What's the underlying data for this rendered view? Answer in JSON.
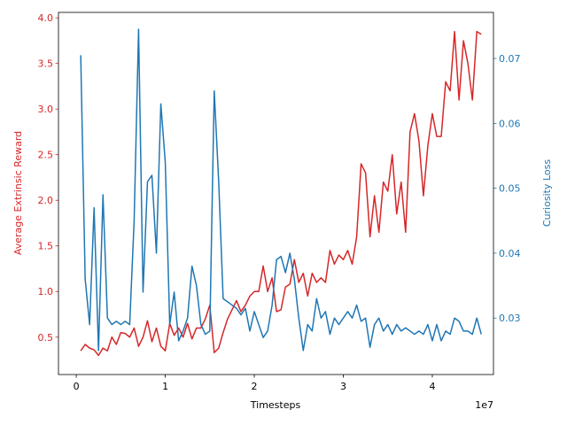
{
  "chart_data": {
    "type": "line",
    "xlabel": "Timesteps",
    "x_offset_label": "1e7",
    "ylabel": "Average Extrinsic Reward",
    "y2label": "Curiosity Loss",
    "ylabel_color": "#d62728",
    "y2label_color": "#1f77b4",
    "xlim": [
      -2000000,
      46870000
    ],
    "xticks": [
      0,
      {
        "value": 10000000,
        "label": "1"
      },
      {
        "value": 20000000,
        "label": "2"
      },
      {
        "value": 30000000,
        "label": "3"
      },
      {
        "value": 40000000,
        "label": "4"
      }
    ],
    "ylim": [
      0.09,
      4.06
    ],
    "yticks": [
      0.5,
      {
        "value": 1,
        "label": "1.0"
      },
      1.5,
      {
        "value": 2,
        "label": "2.0"
      },
      2.5,
      {
        "value": 3,
        "label": "3.0"
      },
      3.5,
      {
        "value": 4,
        "label": "4.0"
      }
    ],
    "y2lim": [
      0.0213,
      0.0771
    ],
    "y2ticks": [
      0.03,
      0.04,
      0.05,
      0.06,
      0.07
    ],
    "grid": false,
    "x": [
      500000,
      1000000,
      1500000,
      2000000,
      2500000,
      3000000,
      3500000,
      4000000,
      4500000,
      5000000,
      5500000,
      6000000,
      6500000,
      7000000,
      7500000,
      8000000,
      8500000,
      9000000,
      9500000,
      10000000,
      10500000,
      11000000,
      11500000,
      12000000,
      12500000,
      13000000,
      13500000,
      14000000,
      14500000,
      15000000,
      15500000,
      16000000,
      16500000,
      17000000,
      17500000,
      18000000,
      18500000,
      19000000,
      19500000,
      20000000,
      20500000,
      21000000,
      21500000,
      22000000,
      22500000,
      23000000,
      23500000,
      24000000,
      24500000,
      25000000,
      25500000,
      26000000,
      26500000,
      27000000,
      27500000,
      28000000,
      28500000,
      29000000,
      29500000,
      30000000,
      30500000,
      31000000,
      31500000,
      32000000,
      32500000,
      33000000,
      33500000,
      34000000,
      34500000,
      35000000,
      35500000,
      36000000,
      36500000,
      37000000,
      37500000,
      38000000,
      38500000,
      39000000,
      39500000,
      40000000,
      40500000,
      41000000,
      41500000,
      42000000,
      42500000,
      43000000,
      43500000,
      44000000,
      44500000,
      45000000,
      45500000
    ],
    "series": [
      {
        "color": "#d62728",
        "values": [
          0.35,
          0.42,
          0.38,
          0.36,
          0.3,
          0.38,
          0.35,
          0.5,
          0.42,
          0.55,
          0.54,
          0.5,
          0.6,
          0.4,
          0.5,
          0.68,
          0.45,
          0.6,
          0.4,
          0.35,
          0.65,
          0.52,
          0.6,
          0.5,
          0.65,
          0.48,
          0.6,
          0.6,
          0.7,
          0.85,
          0.33,
          0.38,
          0.55,
          0.7,
          0.8,
          0.9,
          0.78,
          0.85,
          0.95,
          1.0,
          1.0,
          1.28,
          1.0,
          1.15,
          0.78,
          0.8,
          1.05,
          1.08,
          1.35,
          1.1,
          1.2,
          0.95,
          1.2,
          1.1,
          1.15,
          1.1,
          1.45,
          1.3,
          1.4,
          1.35,
          1.45,
          1.3,
          1.6,
          2.4,
          2.3,
          1.6,
          2.05,
          1.65,
          2.2,
          2.1,
          2.5,
          1.85,
          2.2,
          1.65,
          2.75,
          2.95,
          2.65,
          2.05,
          2.6,
          2.95,
          2.7,
          2.7,
          3.3,
          3.2,
          3.85,
          3.1,
          3.75,
          3.5,
          3.1,
          3.85,
          3.82
        ]
      },
      {
        "color": "#1f77b4",
        "axis": "y2",
        "values": [
          0.0705,
          0.036,
          0.029,
          0.047,
          0.025,
          0.049,
          0.03,
          0.029,
          0.0295,
          0.029,
          0.0295,
          0.029,
          0.045,
          0.0745,
          0.034,
          0.051,
          0.052,
          0.04,
          0.063,
          0.054,
          0.029,
          0.034,
          0.0265,
          0.028,
          0.03,
          0.038,
          0.035,
          0.029,
          0.0275,
          0.028,
          0.065,
          0.051,
          0.033,
          0.0325,
          0.032,
          0.0315,
          0.0305,
          0.0315,
          0.028,
          0.031,
          0.029,
          0.027,
          0.028,
          0.032,
          0.039,
          0.0395,
          0.037,
          0.04,
          0.036,
          0.03,
          0.025,
          0.029,
          0.028,
          0.033,
          0.03,
          0.031,
          0.0275,
          0.03,
          0.029,
          0.03,
          0.031,
          0.03,
          0.032,
          0.0295,
          0.03,
          0.0255,
          0.029,
          0.03,
          0.028,
          0.029,
          0.0275,
          0.029,
          0.028,
          0.0285,
          0.028,
          0.0275,
          0.028,
          0.0275,
          0.029,
          0.0265,
          0.029,
          0.0265,
          0.028,
          0.0275,
          0.03,
          0.0295,
          0.028,
          0.028,
          0.0275,
          0.03,
          0.0275
        ]
      }
    ]
  }
}
